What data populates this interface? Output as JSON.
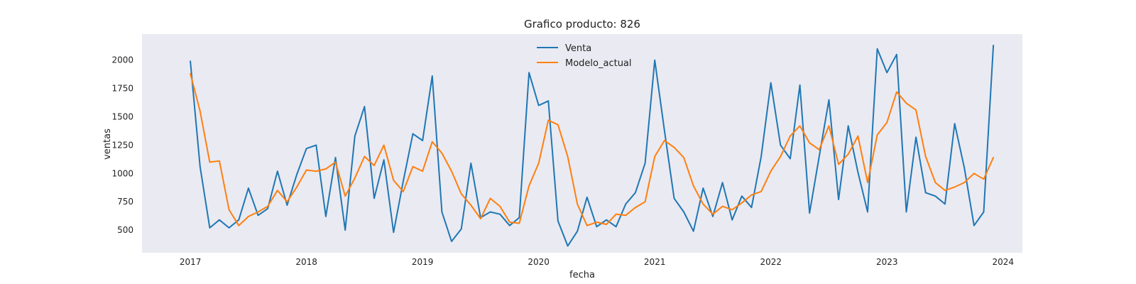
{
  "chart_data": {
    "type": "line",
    "title": "Grafico producto: 826",
    "xlabel": "fecha",
    "ylabel": "ventas",
    "x_ticks": [
      "2017",
      "2018",
      "2019",
      "2020",
      "2021",
      "2022",
      "2023",
      "2024"
    ],
    "y_ticks": [
      "500",
      "750",
      "1000",
      "1250",
      "1500",
      "1750",
      "2000"
    ],
    "xlim": [
      "2016-08",
      "2024-03"
    ],
    "ylim": [
      300,
      2230
    ],
    "grid": false,
    "legend_position": "top-center",
    "colors": {
      "background": "#eaeaf2",
      "venta": "#1f77b4",
      "modelo": "#ff7f0e"
    },
    "x": [
      "2017-01",
      "2017-02",
      "2017-03",
      "2017-04",
      "2017-05",
      "2017-06",
      "2017-07",
      "2017-08",
      "2017-09",
      "2017-10",
      "2017-11",
      "2017-12",
      "2018-01",
      "2018-02",
      "2018-03",
      "2018-04",
      "2018-05",
      "2018-06",
      "2018-07",
      "2018-08",
      "2018-09",
      "2018-10",
      "2018-11",
      "2018-12",
      "2019-01",
      "2019-02",
      "2019-03",
      "2019-04",
      "2019-05",
      "2019-06",
      "2019-07",
      "2019-08",
      "2019-09",
      "2019-10",
      "2019-11",
      "2019-12",
      "2020-01",
      "2020-02",
      "2020-03",
      "2020-04",
      "2020-05",
      "2020-06",
      "2020-07",
      "2020-08",
      "2020-09",
      "2020-10",
      "2020-11",
      "2020-12",
      "2021-01",
      "2021-02",
      "2021-03",
      "2021-04",
      "2021-05",
      "2021-06",
      "2021-07",
      "2021-08",
      "2021-09",
      "2021-10",
      "2021-11",
      "2021-12",
      "2022-01",
      "2022-02",
      "2022-03",
      "2022-04",
      "2022-05",
      "2022-06",
      "2022-07",
      "2022-08",
      "2022-09",
      "2022-10",
      "2022-11",
      "2022-12",
      "2023-01",
      "2023-02",
      "2023-03",
      "2023-04",
      "2023-05",
      "2023-06",
      "2023-07",
      "2023-08",
      "2023-09",
      "2023-10",
      "2023-11",
      "2023-12"
    ],
    "series": [
      {
        "name": "Venta",
        "values": [
          1990,
          1060,
          520,
          590,
          520,
          590,
          870,
          630,
          690,
          1020,
          720,
          990,
          1220,
          1250,
          620,
          1140,
          500,
          1330,
          1590,
          780,
          1120,
          480,
          930,
          1350,
          1290,
          1860,
          660,
          400,
          510,
          1090,
          610,
          660,
          640,
          540,
          610,
          1890,
          1600,
          1640,
          580,
          360,
          490,
          790,
          530,
          590,
          530,
          730,
          830,
          1090,
          2000,
          1380,
          780,
          660,
          490,
          870,
          620,
          920,
          590,
          800,
          700,
          1150,
          1800,
          1250,
          1130,
          1780,
          650,
          1150,
          1650,
          770,
          1420,
          1010,
          660,
          2100,
          1890,
          2050,
          660,
          1320,
          830,
          800,
          730,
          1440,
          1050,
          540,
          660,
          2130
        ]
      },
      {
        "name": "Modelo_actual",
        "values": [
          1880,
          1550,
          1100,
          1110,
          680,
          540,
          620,
          660,
          710,
          850,
          750,
          880,
          1030,
          1020,
          1040,
          1100,
          800,
          960,
          1150,
          1070,
          1250,
          940,
          840,
          1060,
          1020,
          1280,
          1180,
          1020,
          820,
          720,
          600,
          780,
          710,
          570,
          560,
          890,
          1090,
          1470,
          1430,
          1150,
          730,
          540,
          570,
          550,
          640,
          630,
          700,
          750,
          1150,
          1290,
          1230,
          1140,
          890,
          730,
          640,
          710,
          680,
          740,
          810,
          840,
          1020,
          1150,
          1330,
          1420,
          1270,
          1210,
          1420,
          1080,
          1170,
          1330,
          920,
          1340,
          1450,
          1720,
          1620,
          1560,
          1150,
          920,
          850,
          880,
          920,
          1000,
          950,
          1140
        ]
      }
    ]
  }
}
